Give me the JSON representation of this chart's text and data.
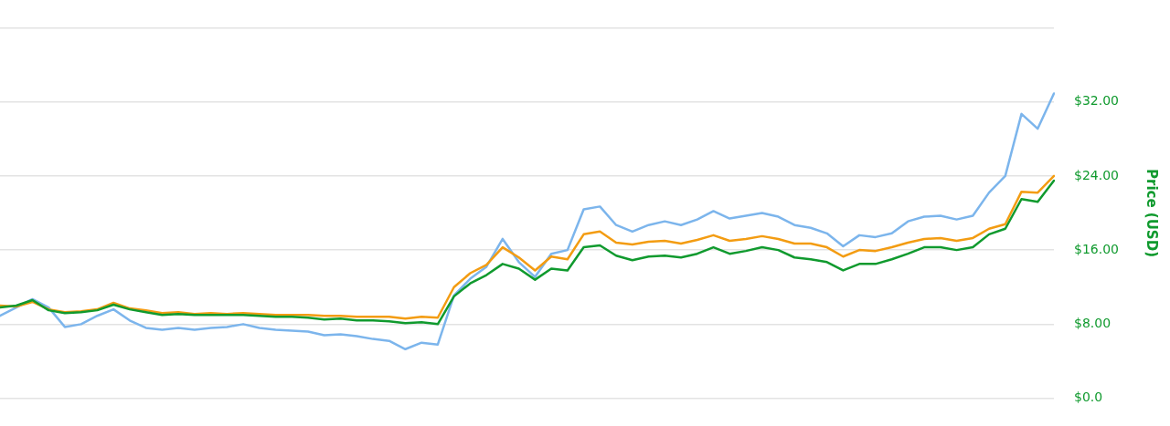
{
  "chart_data": {
    "type": "line",
    "ylabel": "Price (USD)",
    "categories": [
      null,
      null,
      null,
      null,
      null,
      null,
      null,
      null,
      null,
      null,
      null,
      null,
      null,
      null,
      null,
      null,
      null,
      null,
      null,
      null,
      null,
      null,
      null,
      null,
      null,
      null,
      null,
      null,
      null,
      null,
      null,
      null,
      null,
      null,
      null,
      null,
      null,
      null,
      null,
      null,
      null,
      null,
      null,
      null,
      null,
      null,
      null,
      null,
      null,
      null,
      null,
      null,
      null,
      null,
      null,
      null,
      null,
      null,
      null,
      null,
      null,
      null,
      null,
      null,
      null,
      null
    ],
    "series": [
      {
        "color": "#7cb5ec",
        "values": [
          8.9,
          9.8,
          10.7,
          9.8,
          7.7,
          8.0,
          8.9,
          9.6,
          8.4,
          7.6,
          7.4,
          7.6,
          7.4,
          7.6,
          7.7,
          8.0,
          7.6,
          7.4,
          7.3,
          7.2,
          6.8,
          6.9,
          6.7,
          6.4,
          6.2,
          5.3,
          6.0,
          5.8,
          11.1,
          12.9,
          14.2,
          17.2,
          14.7,
          13.1,
          15.6,
          16.0,
          20.4,
          20.7,
          18.7,
          18.0,
          18.7,
          19.1,
          18.7,
          19.3,
          20.2,
          19.4,
          19.7,
          20.0,
          19.6,
          18.7,
          18.4,
          17.8,
          16.4,
          17.6,
          17.4,
          17.8,
          19.1,
          19.6,
          19.7,
          19.3,
          19.7,
          22.2,
          24.0,
          30.7,
          29.1,
          32.9
        ]
      },
      {
        "color": "#f39c12",
        "values": [
          10.0,
          9.9,
          10.4,
          9.6,
          9.3,
          9.4,
          9.6,
          10.3,
          9.7,
          9.5,
          9.2,
          9.3,
          9.1,
          9.2,
          9.1,
          9.2,
          9.1,
          9.0,
          9.0,
          9.0,
          8.9,
          8.9,
          8.8,
          8.8,
          8.8,
          8.6,
          8.8,
          8.7,
          12.0,
          13.5,
          14.4,
          16.3,
          15.2,
          13.8,
          15.3,
          15.0,
          17.7,
          18.0,
          16.8,
          16.6,
          16.9,
          17.0,
          16.7,
          17.1,
          17.6,
          17.0,
          17.2,
          17.5,
          17.2,
          16.7,
          16.7,
          16.3,
          15.3,
          16.0,
          15.9,
          16.3,
          16.8,
          17.2,
          17.3,
          17.0,
          17.3,
          18.3,
          18.8,
          22.3,
          22.2,
          24.0
        ]
      },
      {
        "color": "#109a2e",
        "values": [
          9.8,
          10.0,
          10.6,
          9.5,
          9.2,
          9.3,
          9.5,
          10.1,
          9.6,
          9.3,
          9.0,
          9.1,
          9.0,
          9.0,
          9.0,
          9.0,
          8.9,
          8.8,
          8.8,
          8.7,
          8.5,
          8.6,
          8.4,
          8.4,
          8.3,
          8.1,
          8.2,
          8.0,
          11.0,
          12.4,
          13.3,
          14.5,
          14.0,
          12.8,
          14.0,
          13.8,
          16.3,
          16.5,
          15.4,
          14.9,
          15.3,
          15.4,
          15.2,
          15.6,
          16.3,
          15.6,
          15.9,
          16.3,
          16.0,
          15.2,
          15.0,
          14.7,
          13.8,
          14.5,
          14.5,
          15.0,
          15.6,
          16.3,
          16.3,
          16.0,
          16.3,
          17.7,
          18.3,
          21.5,
          21.2,
          23.5
        ]
      }
    ],
    "ylim": [
      0,
      40
    ],
    "yticks": [
      {
        "value": 0,
        "label": "$0.0"
      },
      {
        "value": 8,
        "label": "$8.00"
      },
      {
        "value": 16,
        "label": "$16.00"
      },
      {
        "value": 24,
        "label": "$24.00"
      },
      {
        "value": 32,
        "label": "$32.00"
      },
      {
        "value": 40,
        "label": null
      }
    ],
    "tick_labels": "y",
    "grid": "y",
    "legend": false,
    "marker": "none",
    "line_style": "solid"
  }
}
